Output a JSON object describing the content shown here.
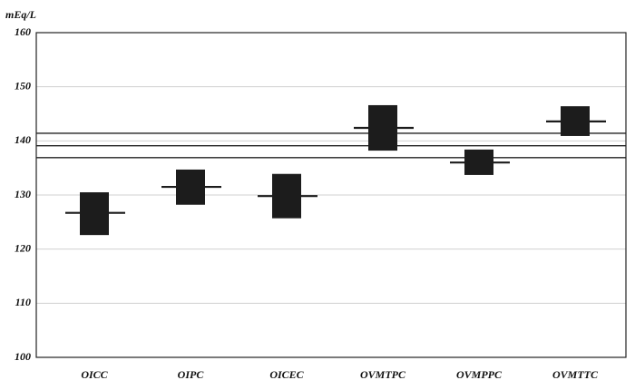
{
  "chart_data": {
    "type": "range",
    "y_label": "mEq/L",
    "categories": [
      "OICC",
      "OIPC",
      "OICEC",
      "OVMTPC",
      "OVMPPC",
      "OVMTTC"
    ],
    "lows": [
      122.6,
      128.2,
      125.7,
      138.2,
      133.7,
      140.9
    ],
    "highs": [
      130.5,
      134.7,
      133.9,
      146.6,
      138.4,
      146.4
    ],
    "means": [
      126.7,
      131.5,
      129.8,
      142.4,
      136.0,
      143.6
    ],
    "reference_lines": [
      141.4,
      139.1,
      136.9
    ],
    "color": "#1c1c1c",
    "ylim": [
      100,
      160
    ],
    "yticks": [
      100,
      110,
      120,
      130,
      140,
      150,
      160
    ],
    "grid": true
  }
}
